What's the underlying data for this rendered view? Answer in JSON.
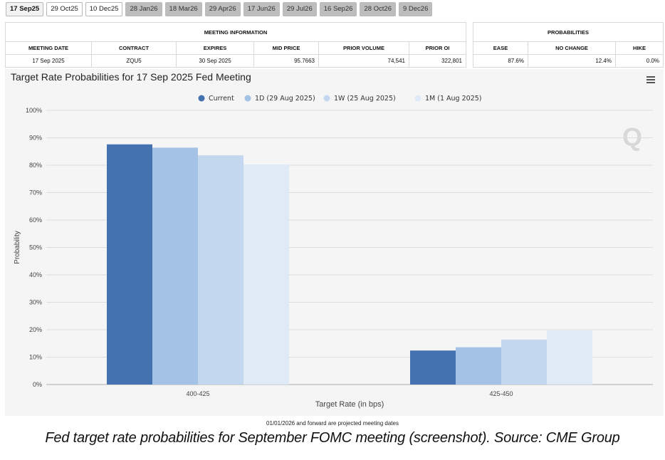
{
  "tabs": [
    {
      "label": "17 Sep25",
      "state": "active"
    },
    {
      "label": "29 Oct25",
      "state": "light"
    },
    {
      "label": "10 Dec25",
      "state": "light"
    },
    {
      "label": "28 Jan26",
      "state": "gray"
    },
    {
      "label": "18 Mar26",
      "state": "gray"
    },
    {
      "label": "29 Apr26",
      "state": "gray"
    },
    {
      "label": "17 Jun26",
      "state": "gray"
    },
    {
      "label": "29 Jul26",
      "state": "gray"
    },
    {
      "label": "16 Sep26",
      "state": "gray"
    },
    {
      "label": "28 Oct26",
      "state": "gray"
    },
    {
      "label": "9 Dec26",
      "state": "gray"
    }
  ],
  "meeting_info": {
    "section_title": "MEETING INFORMATION",
    "headers": [
      "MEETING DATE",
      "CONTRACT",
      "EXPIRES",
      "MID PRICE",
      "PRIOR VOLUME",
      "PRIOR OI"
    ],
    "row": [
      "17 Sep 2025",
      "ZQU5",
      "30 Sep 2025",
      "95.7663",
      "74,541",
      "322,801"
    ]
  },
  "probabilities": {
    "section_title": "PROBABILITIES",
    "headers": [
      "EASE",
      "NO CHANGE",
      "HIKE"
    ],
    "row": [
      "87.6%",
      "12.4%",
      "0.0%"
    ]
  },
  "chart_title": "Target Rate Probabilities for 17 Sep 2025 Fed Meeting",
  "chart_data": {
    "type": "bar",
    "title": "Target Rate Probabilities for 17 Sep 2025 Fed Meeting",
    "xlabel": "Target Rate (in bps)",
    "ylabel": "Probability",
    "ylim": [
      0,
      100
    ],
    "yticks": [
      "0%",
      "10%",
      "20%",
      "30%",
      "40%",
      "50%",
      "60%",
      "70%",
      "80%",
      "90%",
      "100%"
    ],
    "categories": [
      "400-425",
      "425-450"
    ],
    "series": [
      {
        "name": "Current",
        "color": "#4472b0",
        "values": [
          87.6,
          12.4
        ]
      },
      {
        "name": "1D (29 Aug 2025)",
        "color": "#a4c1e6",
        "values": [
          86.4,
          13.6
        ]
      },
      {
        "name": "1W (25 Aug 2025)",
        "color": "#c3d7ef",
        "values": [
          83.6,
          16.4
        ]
      },
      {
        "name": "1M (1 Aug 2025)",
        "color": "#e0eaf6",
        "values": [
          80.3,
          19.7
        ]
      }
    ],
    "legend_position": "top-center",
    "grid": true
  },
  "footnote": "01/01/2026 and forward are projected meeting dates",
  "caption": "Fed target rate probabilities for September FOMC meeting (screenshot). Source: CME Group",
  "icons": {
    "menu": "menu-icon",
    "watermark": "q-logo-watermark"
  }
}
